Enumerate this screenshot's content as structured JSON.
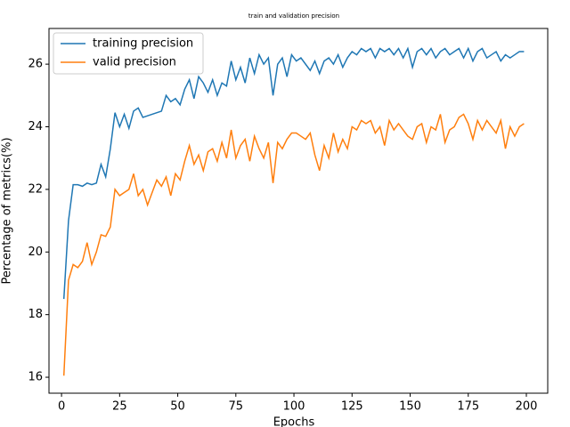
{
  "chart_data": {
    "type": "line",
    "title": "train and validation precision",
    "x_label": "Epochs",
    "y_label": "Percentage of metrics(%)",
    "x": [
      1,
      3,
      5,
      7,
      9,
      11,
      13,
      15,
      17,
      19,
      21,
      23,
      25,
      27,
      29,
      31,
      33,
      35,
      37,
      39,
      41,
      43,
      45,
      47,
      49,
      51,
      53,
      55,
      57,
      59,
      61,
      63,
      65,
      67,
      69,
      71,
      73,
      75,
      77,
      79,
      81,
      83,
      85,
      87,
      89,
      91,
      93,
      95,
      97,
      99,
      101,
      103,
      105,
      107,
      109,
      111,
      113,
      115,
      117,
      119,
      121,
      123,
      125,
      127,
      129,
      131,
      133,
      135,
      137,
      139,
      141,
      143,
      145,
      147,
      149,
      151,
      153,
      155,
      157,
      159,
      161,
      163,
      165,
      167,
      169,
      171,
      173,
      175,
      177,
      179,
      181,
      183,
      185,
      187,
      189,
      191,
      193,
      195,
      197,
      199
    ],
    "series": [
      {
        "name": "training precision",
        "color": "#1f77b4",
        "values": [
          18.5,
          21.0,
          22.15,
          22.15,
          22.1,
          22.2,
          22.15,
          22.2,
          22.8,
          22.4,
          23.3,
          24.45,
          24.0,
          24.4,
          23.95,
          24.5,
          24.6,
          24.3,
          24.35,
          24.4,
          24.45,
          24.5,
          25.0,
          24.8,
          24.9,
          24.7,
          25.2,
          25.5,
          24.9,
          25.6,
          25.4,
          25.1,
          25.5,
          25.0,
          25.4,
          25.3,
          26.1,
          25.5,
          25.9,
          25.4,
          26.2,
          25.7,
          26.3,
          26.0,
          26.2,
          25.0,
          26.0,
          26.2,
          25.6,
          26.3,
          26.1,
          26.2,
          26.0,
          25.8,
          26.1,
          25.7,
          26.1,
          26.2,
          26.0,
          26.3,
          25.9,
          26.2,
          26.4,
          26.3,
          26.5,
          26.4,
          26.5,
          26.2,
          26.5,
          26.4,
          26.5,
          26.3,
          26.5,
          26.2,
          26.5,
          25.9,
          26.4,
          26.5,
          26.3,
          26.5,
          26.2,
          26.4,
          26.5,
          26.3,
          26.4,
          26.5,
          26.2,
          26.5,
          26.1,
          26.4,
          26.5,
          26.2,
          26.3,
          26.4,
          26.1,
          26.3,
          26.2,
          26.3,
          26.4,
          26.4
        ]
      },
      {
        "name": "valid precision",
        "color": "#ff7f0e",
        "values": [
          16.05,
          19.1,
          19.6,
          19.5,
          19.7,
          20.3,
          19.6,
          20.0,
          20.55,
          20.5,
          20.8,
          22.0,
          21.8,
          21.9,
          22.0,
          22.5,
          21.8,
          22.0,
          21.5,
          21.9,
          22.3,
          22.1,
          22.4,
          21.8,
          22.5,
          22.3,
          22.9,
          23.4,
          22.8,
          23.1,
          22.6,
          23.2,
          23.3,
          22.9,
          23.5,
          23.0,
          23.9,
          23.0,
          23.4,
          23.6,
          22.9,
          23.7,
          23.3,
          23.0,
          23.5,
          22.2,
          23.5,
          23.3,
          23.6,
          23.8,
          23.8,
          23.7,
          23.6,
          23.8,
          23.1,
          22.6,
          23.4,
          23.0,
          23.8,
          23.2,
          23.6,
          23.3,
          24.0,
          23.9,
          24.2,
          24.1,
          24.2,
          23.8,
          24.0,
          23.4,
          24.2,
          23.9,
          24.1,
          23.9,
          23.7,
          23.6,
          24.0,
          24.1,
          23.5,
          24.0,
          23.9,
          24.4,
          23.5,
          23.9,
          24.0,
          24.3,
          24.4,
          24.1,
          23.6,
          24.2,
          23.9,
          24.2,
          24.0,
          23.8,
          24.2,
          23.3,
          24.0,
          23.7,
          24.0,
          24.1
        ]
      }
    ],
    "xlim": [
      -5.4,
      209.2
    ],
    "ylim": [
      15.49,
      27.14
    ],
    "xticks": [
      0,
      25,
      50,
      75,
      100,
      125,
      150,
      175,
      200
    ],
    "yticks": [
      16,
      18,
      20,
      22,
      24,
      26
    ],
    "legend": "upper left"
  }
}
